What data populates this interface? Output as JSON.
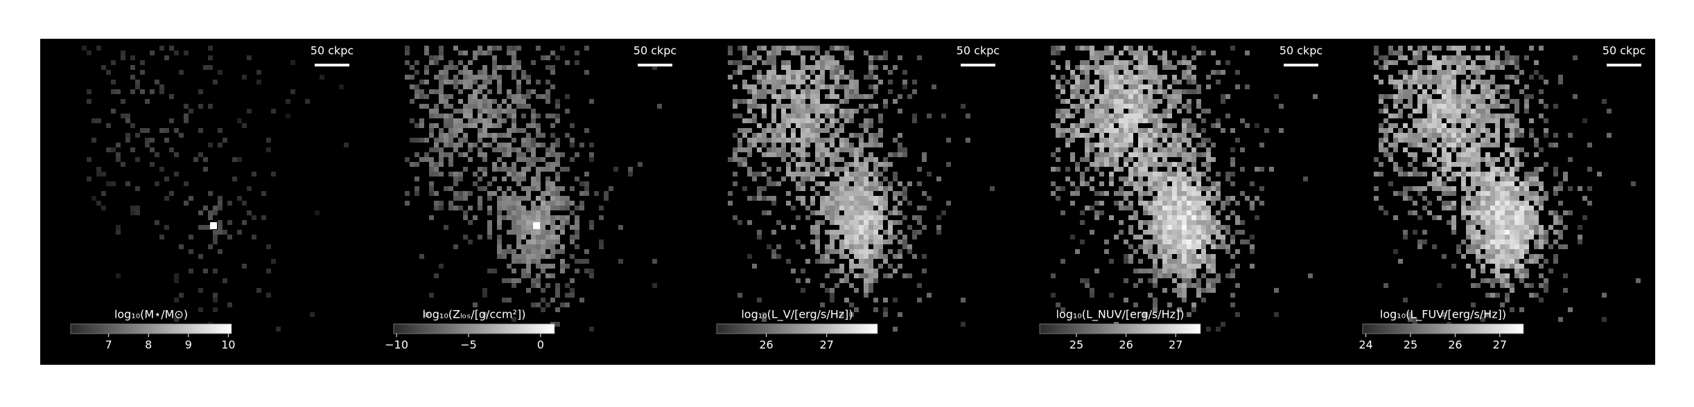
{
  "panels": [
    {
      "scale_label": "50 ckpc",
      "colorbar": {
        "label": "log₁₀(M⋆/M⊙)",
        "lim": [
          6.05,
          10.08
        ],
        "ticks": [
          7,
          8,
          9,
          10
        ]
      }
    },
    {
      "scale_label": "50 ckpc",
      "colorbar": {
        "label": "log₁₀(Zₗₒₛ/[g/ccm²])",
        "lim": [
          -10.2,
          0.97
        ],
        "ticks": [
          {
            "value": -10,
            "label": "−10"
          },
          {
            "value": -5,
            "label": "−5"
          },
          0
        ]
      }
    },
    {
      "scale_label": "50 ckpc",
      "colorbar": {
        "label": "log₁₀(L_V/[erg/s/Hz])",
        "lim": [
          25.18,
          27.84
        ],
        "ticks": [
          26,
          27
        ]
      }
    },
    {
      "scale_label": "50 ckpc",
      "colorbar": {
        "label": "log₁₀(L_NUV/[erg/s/Hz])",
        "lim": [
          24.26,
          27.5
        ],
        "ticks": [
          25,
          26,
          27
        ]
      }
    },
    {
      "scale_label": "50 ckpc",
      "colorbar": {
        "label": "log₁₀(L_FUV/[erg/s/Hz])",
        "lim": [
          23.93,
          27.53
        ],
        "ticks": [
          24,
          25,
          26,
          27
        ]
      }
    }
  ]
}
